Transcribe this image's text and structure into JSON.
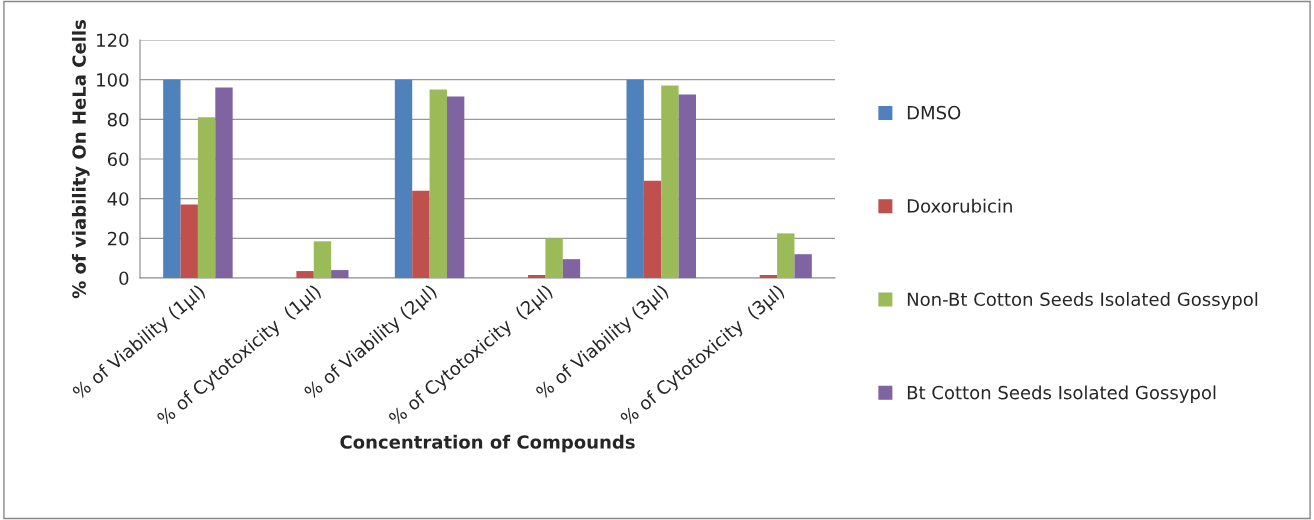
{
  "chart_data": {
    "type": "bar",
    "xlabel": "Concentration of Compounds",
    "ylabel": "% of viability On HeLa Cells",
    "categories": [
      "% of Viability (1µl)",
      "% of Cytotoxicity  (1µl)",
      "% of Viability (2µl)",
      "% of Cytotoxicity  (2µl)",
      "% of Viability (3µl)",
      "% of Cytotoxicity  (3µl)"
    ],
    "series": [
      {
        "name": "DMSO",
        "color": "#4f81bd",
        "values": [
          100,
          0,
          100,
          0,
          100,
          0
        ]
      },
      {
        "name": "Doxorubicin",
        "color": "#c0504d",
        "values": [
          37,
          3.5,
          44,
          1.5,
          49,
          1.5
        ]
      },
      {
        "name": "Non-Bt Cotton Seeds Isolated Gossypol",
        "color": "#9bbb59",
        "values": [
          81,
          18.5,
          95,
          20,
          97,
          22.5
        ]
      },
      {
        "name": "Bt Cotton Seeds Isolated Gossypol",
        "color": "#8064a2",
        "values": [
          96,
          4,
          91.5,
          9.5,
          92.5,
          12
        ]
      }
    ],
    "ylim": [
      0,
      120
    ],
    "yticks": [
      0,
      20,
      40,
      60,
      80,
      100,
      120
    ],
    "grid": "y",
    "legend": "right"
  }
}
